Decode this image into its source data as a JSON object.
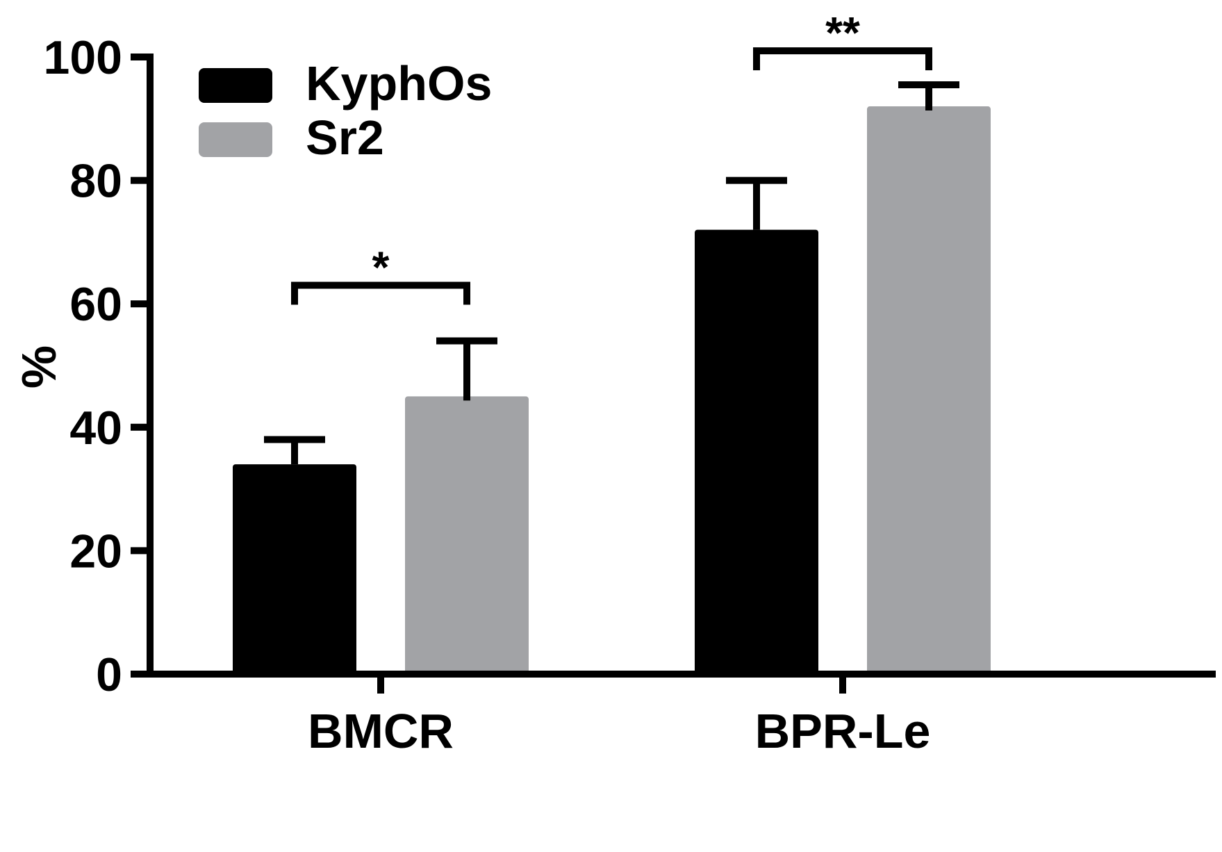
{
  "chart_data": {
    "type": "bar",
    "title": "",
    "xlabel": "",
    "ylabel": "%",
    "ylim": [
      0,
      100
    ],
    "yticks": [
      0,
      20,
      40,
      60,
      80,
      100
    ],
    "categories": [
      "BMCR",
      "BPR-Le"
    ],
    "series": [
      {
        "name": "KyphOs",
        "color": "#000000",
        "values": [
          34,
          72
        ],
        "errors": [
          4,
          8
        ]
      },
      {
        "name": "Sr2",
        "color": "#a2a3a6",
        "values": [
          45,
          92
        ],
        "errors": [
          9,
          3.5
        ]
      }
    ],
    "annotations": [
      {
        "category": "BMCR",
        "label": "*",
        "bracket_y": 63
      },
      {
        "category": "BPR-Le",
        "label": "**",
        "bracket_y": 101
      }
    ],
    "legend": {
      "position": "top-left"
    },
    "grid": false
  }
}
